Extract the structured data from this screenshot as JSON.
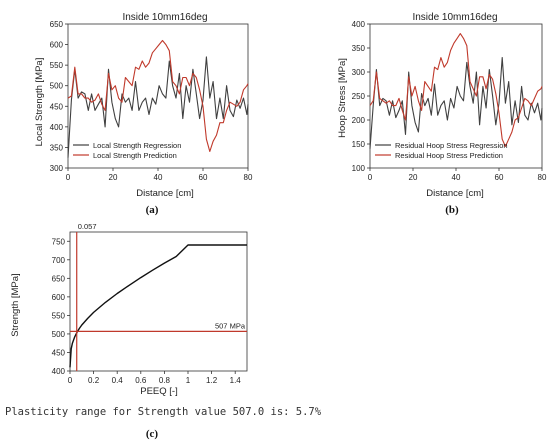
{
  "chart_data": [
    {
      "type": "line",
      "panel_label": "(a)",
      "title": "Inside 10mm16deg",
      "xlabel": "Distance [cm]",
      "ylabel": "Local Strength [MPa]",
      "xlim": [
        0,
        80
      ],
      "ylim": [
        300,
        650
      ],
      "xticks": [
        0,
        20,
        40,
        60,
        80
      ],
      "yticks": [
        300,
        350,
        400,
        450,
        500,
        550,
        600,
        650
      ],
      "legend_position": "bottom-left",
      "grid": false,
      "series": [
        {
          "name": "Local Strength Regression",
          "color": "#404040",
          "x": [
            0,
            1.5,
            3,
            4.5,
            6,
            7.5,
            9,
            10.5,
            12,
            13.5,
            15,
            16.5,
            18,
            19.5,
            21,
            22.5,
            24,
            25.5,
            27,
            28.5,
            30,
            31.5,
            33,
            34.5,
            36,
            37.5,
            39,
            40.5,
            42,
            43.5,
            45,
            46.5,
            48,
            49.5,
            51,
            52.5,
            54,
            55.5,
            57,
            58.5,
            60,
            61.5,
            63,
            64.5,
            66,
            67.5,
            69,
            70.5,
            72,
            73.5,
            75,
            76.5,
            78,
            79.5,
            80
          ],
          "y": [
            325,
            465,
            540,
            470,
            485,
            480,
            440,
            480,
            440,
            455,
            470,
            400,
            540,
            460,
            420,
            400,
            480,
            460,
            470,
            440,
            510,
            440,
            460,
            470,
            430,
            470,
            455,
            500,
            480,
            470,
            560,
            500,
            470,
            530,
            420,
            500,
            460,
            540,
            480,
            420,
            465,
            570,
            470,
            510,
            420,
            470,
            420,
            500,
            440,
            425,
            465,
            445,
            470,
            430,
            455
          ]
        },
        {
          "name": "Local Strength Prediction",
          "color": "#c0392b",
          "x": [
            0,
            1.5,
            3,
            4.5,
            6,
            7.5,
            9,
            10.5,
            12,
            13.5,
            15,
            16.5,
            18,
            19.5,
            21,
            22.5,
            24,
            25.5,
            27,
            28.5,
            30,
            31.5,
            33,
            34.5,
            36,
            37.5,
            39,
            40.5,
            42,
            43.5,
            45,
            46.5,
            48,
            49.5,
            51,
            52.5,
            54,
            55.5,
            57,
            58.5,
            60,
            61.5,
            63,
            64.5,
            66,
            67.5,
            69,
            70.5,
            72,
            73.5,
            75,
            76.5,
            78,
            79.5,
            80
          ],
          "y": [
            470,
            475,
            545,
            480,
            480,
            470,
            470,
            460,
            465,
            480,
            455,
            440,
            530,
            490,
            500,
            470,
            460,
            520,
            510,
            500,
            545,
            540,
            560,
            545,
            555,
            580,
            590,
            600,
            610,
            600,
            585,
            510,
            500,
            480,
            520,
            520,
            500,
            530,
            520,
            490,
            450,
            370,
            340,
            365,
            380,
            410,
            410,
            440,
            460,
            455,
            450,
            460,
            490,
            500,
            505
          ]
        }
      ]
    },
    {
      "type": "line",
      "panel_label": "(b)",
      "title": "Inside 10mm16deg",
      "xlabel": "Distance [cm]",
      "ylabel": "Hoop Stress [MPa]",
      "xlim": [
        0,
        80
      ],
      "ylim": [
        100,
        400
      ],
      "xticks": [
        0,
        20,
        40,
        60,
        80
      ],
      "yticks": [
        100,
        150,
        200,
        250,
        300,
        350,
        400
      ],
      "legend_position": "bottom-left",
      "grid": false,
      "series": [
        {
          "name": "Residual Hoop Stress Regression",
          "color": "#404040",
          "x": [
            0,
            1.5,
            3,
            4.5,
            6,
            7.5,
            9,
            10.5,
            12,
            13.5,
            15,
            16.5,
            18,
            19.5,
            21,
            22.5,
            24,
            25.5,
            27,
            28.5,
            30,
            31.5,
            33,
            34.5,
            36,
            37.5,
            39,
            40.5,
            42,
            43.5,
            45,
            46.5,
            48,
            49.5,
            51,
            52.5,
            54,
            55.5,
            57,
            58.5,
            60,
            61.5,
            63,
            64.5,
            66,
            67.5,
            69,
            70.5,
            72,
            73.5,
            75,
            76.5,
            78,
            79.5,
            80
          ],
          "y": [
            140,
            230,
            305,
            230,
            245,
            240,
            210,
            240,
            205,
            220,
            240,
            170,
            300,
            230,
            195,
            175,
            255,
            230,
            245,
            210,
            275,
            210,
            230,
            240,
            200,
            245,
            225,
            270,
            250,
            240,
            320,
            270,
            235,
            300,
            190,
            270,
            225,
            305,
            250,
            190,
            235,
            330,
            235,
            280,
            190,
            240,
            195,
            270,
            210,
            200,
            235,
            215,
            235,
            200,
            225
          ]
        },
        {
          "name": "Residual Hoop Stress Prediction",
          "color": "#c0392b",
          "x": [
            0,
            1.5,
            3,
            4.5,
            6,
            7.5,
            9,
            10.5,
            12,
            13.5,
            15,
            16.5,
            18,
            19.5,
            21,
            22.5,
            24,
            25.5,
            27,
            28.5,
            30,
            31.5,
            33,
            34.5,
            36,
            37.5,
            39,
            40.5,
            42,
            43.5,
            45,
            46.5,
            48,
            49.5,
            51,
            52.5,
            54,
            55.5,
            57,
            58.5,
            60,
            61.5,
            63,
            64.5,
            66,
            67.5,
            69,
            70.5,
            72,
            73.5,
            75,
            76.5,
            78,
            79.5,
            80
          ],
          "y": [
            230,
            240,
            300,
            245,
            240,
            235,
            240,
            230,
            230,
            245,
            220,
            200,
            290,
            250,
            270,
            240,
            220,
            280,
            270,
            260,
            310,
            305,
            330,
            310,
            320,
            345,
            360,
            370,
            380,
            370,
            355,
            280,
            265,
            250,
            290,
            290,
            265,
            295,
            285,
            255,
            215,
            160,
            145,
            160,
            175,
            200,
            205,
            225,
            245,
            240,
            230,
            245,
            260,
            265,
            270
          ]
        }
      ]
    },
    {
      "type": "line",
      "panel_label": "(c)",
      "title": "",
      "xlabel": "PEEQ [-]",
      "ylabel": "Strength [MPa]",
      "xlim": [
        0,
        1.5
      ],
      "ylim": [
        400,
        775
      ],
      "xticks": [
        0,
        0.2,
        0.4,
        0.6,
        0.8,
        1.0,
        1.2,
        1.4
      ],
      "yticks": [
        400,
        450,
        500,
        550,
        600,
        650,
        700,
        750
      ],
      "grid": false,
      "series": [
        {
          "name": "",
          "color": "#111111",
          "x": [
            0,
            0.01,
            0.02,
            0.04,
            0.06,
            0.08,
            0.1,
            0.15,
            0.2,
            0.3,
            0.4,
            0.5,
            0.6,
            0.7,
            0.8,
            0.9,
            1.0,
            1.2,
            1.5
          ],
          "y": [
            410,
            460,
            475,
            492,
            505,
            515,
            524,
            542,
            558,
            585,
            609,
            631,
            652,
            672,
            691,
            709,
            740,
            740,
            740
          ]
        }
      ],
      "reference_lines": {
        "vertical": {
          "x": 0.057,
          "label": "0.057",
          "color": "#c0392b"
        },
        "horizontal": {
          "y": 507,
          "label": "507 MPa",
          "color": "#c0392b"
        }
      },
      "footer_text": "Plasticity range for Strength value 507.0 is: 5.7%"
    }
  ]
}
